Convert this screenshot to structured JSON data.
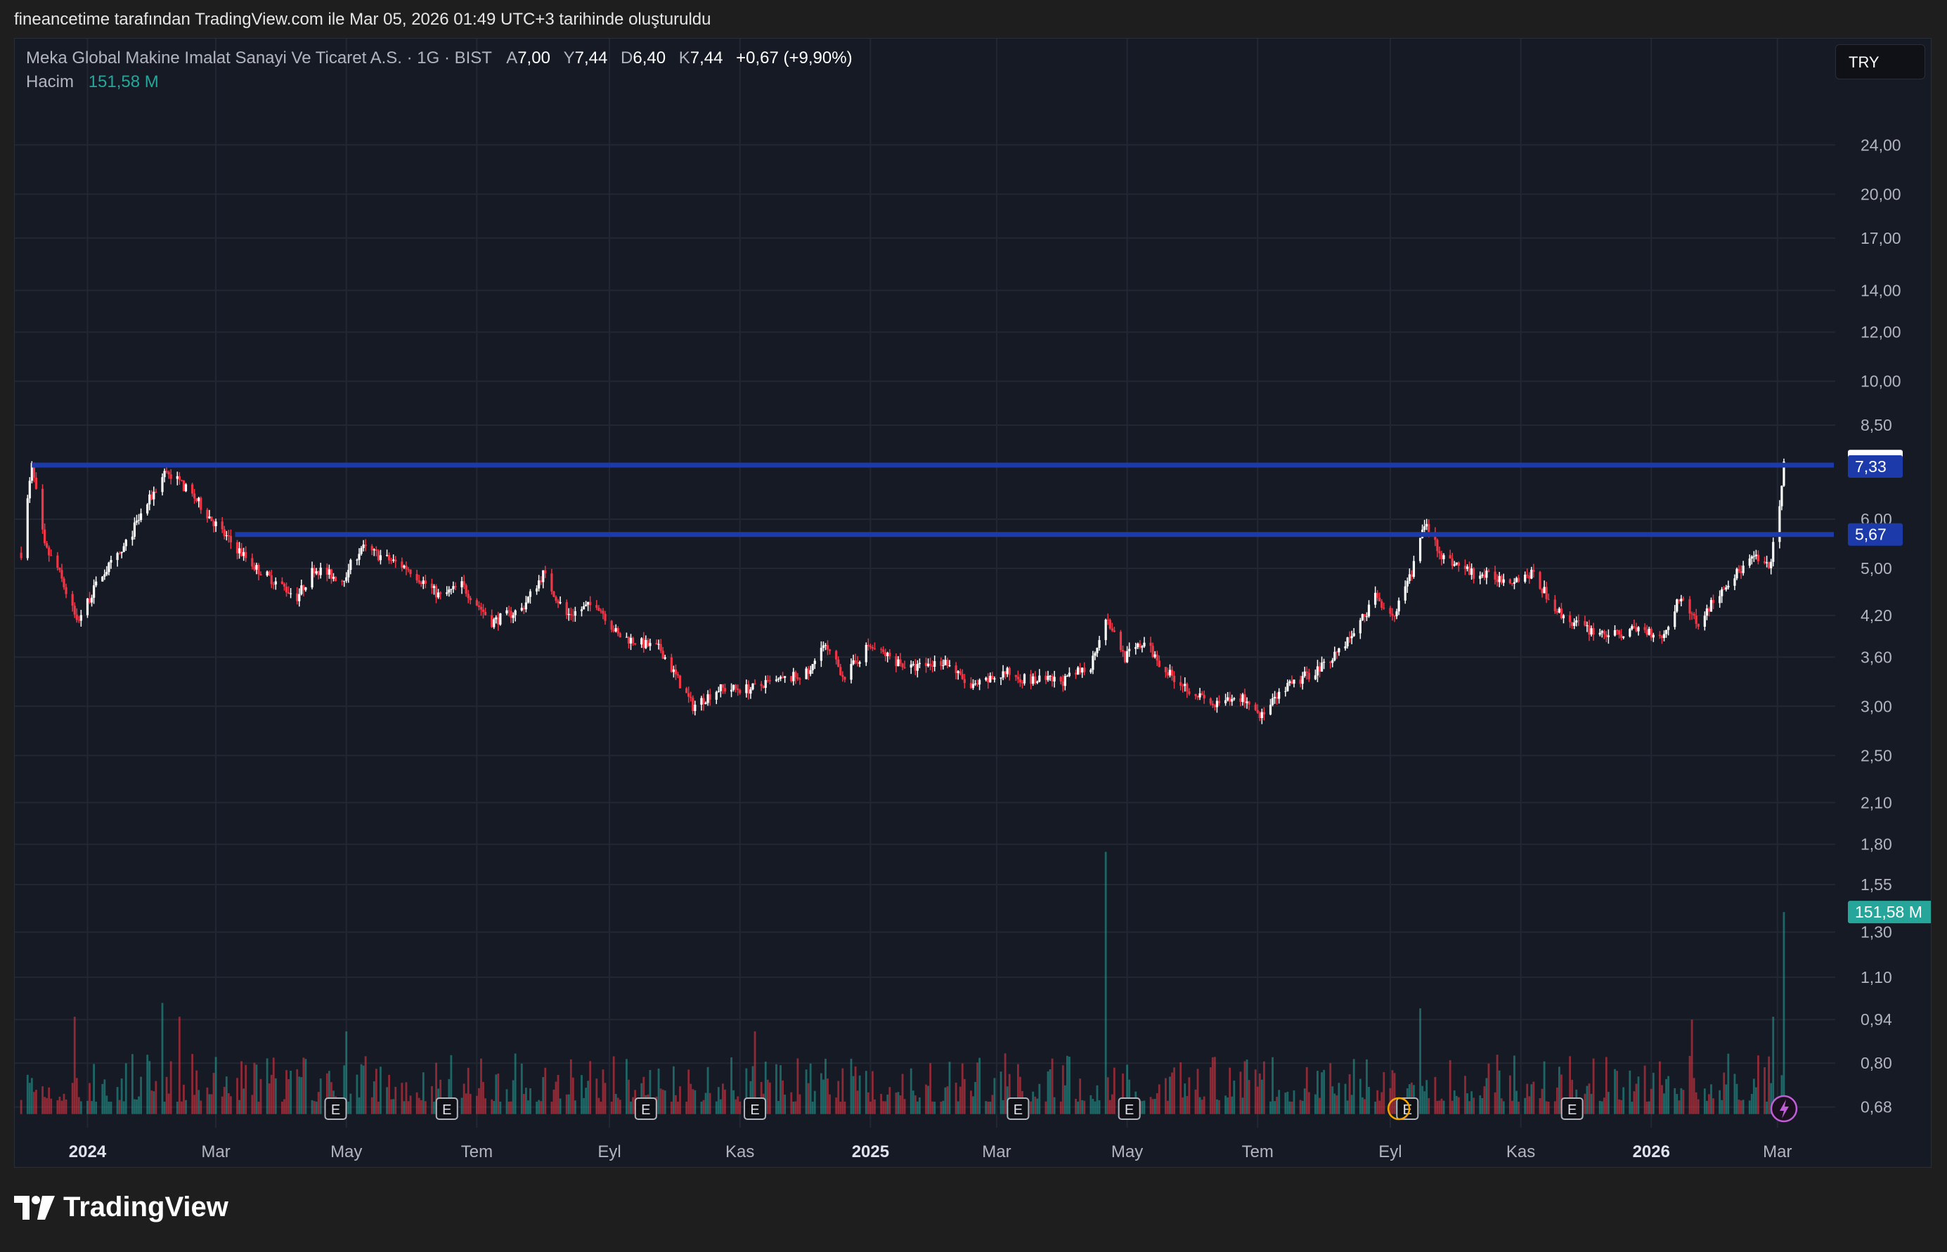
{
  "caption": "fineancetime tarafından TradingView.com ile Mar 05, 2026 01:49 UTC+3 tarihinde oluşturuldu",
  "legend": {
    "symbol": "Meka Global Makine Imalat Sanayi Ve Ticaret A.S. · 1G · BIST",
    "open_label": "A",
    "open": "7,00",
    "high_label": "Y",
    "high": "7,44",
    "low_label": "D",
    "low": "6,40",
    "close_label": "K",
    "close": "7,44",
    "change": "+0,67 (+9,90%)",
    "volume_label": "Hacim",
    "volume": "151,58 M"
  },
  "currency": "TRY",
  "brand": "TradingView",
  "colors": {
    "up": "#ffffff",
    "down": "#f23645",
    "vol_up": "#26a69a",
    "vol_down": "#f23645",
    "hline": "#1c3aa9",
    "bg": "#161a25"
  },
  "chart_data": {
    "type": "candlestick",
    "y_scale": "log",
    "ylim": [
      0.65,
      27
    ],
    "y_ticks": [
      "24,00",
      "20,00",
      "17,00",
      "14,00",
      "12,00",
      "10,00",
      "8,50",
      "6,00",
      "5,00",
      "4,20",
      "3,60",
      "3,00",
      "2,50",
      "2,10",
      "1,80",
      "1,55",
      "1,30",
      "1,10",
      "0,94",
      "0,80",
      "0,68"
    ],
    "x_ticks": [
      "2024",
      "Mar",
      "May",
      "Tem",
      "Eyl",
      "Kas",
      "2025",
      "Mar",
      "May",
      "Tem",
      "Eyl",
      "Kas",
      "2026",
      "Mar"
    ],
    "x_tick_bold": [
      true,
      false,
      false,
      false,
      false,
      false,
      true,
      false,
      false,
      false,
      false,
      false,
      true,
      false
    ],
    "price_path": [
      {
        "d": "2023-12-01",
        "p": 5.3
      },
      {
        "d": "2023-12-06",
        "p": 7.3
      },
      {
        "d": "2023-12-12",
        "p": 5.4
      },
      {
        "d": "2023-12-18",
        "p": 5.0
      },
      {
        "d": "2023-12-27",
        "p": 4.1
      },
      {
        "d": "2024-01-08",
        "p": 4.9
      },
      {
        "d": "2024-01-17",
        "p": 5.3
      },
      {
        "d": "2024-01-26",
        "p": 6.1
      },
      {
        "d": "2024-02-07",
        "p": 7.2
      },
      {
        "d": "2024-02-20",
        "p": 6.5
      },
      {
        "d": "2024-03-06",
        "p": 5.6
      },
      {
        "d": "2024-03-20",
        "p": 5.0
      },
      {
        "d": "2024-04-08",
        "p": 4.5
      },
      {
        "d": "2024-04-16",
        "p": 5.0
      },
      {
        "d": "2024-04-29",
        "p": 4.8
      },
      {
        "d": "2024-05-08",
        "p": 5.4
      },
      {
        "d": "2024-05-30",
        "p": 5.0
      },
      {
        "d": "2024-06-14",
        "p": 4.5
      },
      {
        "d": "2024-06-24",
        "p": 4.7
      },
      {
        "d": "2024-07-08",
        "p": 4.1
      },
      {
        "d": "2024-07-22",
        "p": 4.3
      },
      {
        "d": "2024-08-01",
        "p": 4.9
      },
      {
        "d": "2024-08-12",
        "p": 4.2
      },
      {
        "d": "2024-08-26",
        "p": 4.4
      },
      {
        "d": "2024-09-05",
        "p": 3.9
      },
      {
        "d": "2024-09-25",
        "p": 3.7
      },
      {
        "d": "2024-10-10",
        "p": 3.0
      },
      {
        "d": "2024-10-22",
        "p": 3.2
      },
      {
        "d": "2024-11-06",
        "p": 3.2
      },
      {
        "d": "2024-11-20",
        "p": 3.3
      },
      {
        "d": "2024-12-04",
        "p": 3.4
      },
      {
        "d": "2024-12-09",
        "p": 3.8
      },
      {
        "d": "2024-12-20",
        "p": 3.35
      },
      {
        "d": "2024-12-31",
        "p": 3.75
      },
      {
        "d": "2025-01-20",
        "p": 3.45
      },
      {
        "d": "2025-02-05",
        "p": 3.55
      },
      {
        "d": "2025-02-17",
        "p": 3.2
      },
      {
        "d": "2025-03-05",
        "p": 3.4
      },
      {
        "d": "2025-03-17",
        "p": 3.3
      },
      {
        "d": "2025-04-02",
        "p": 3.3
      },
      {
        "d": "2025-04-14",
        "p": 3.5
      },
      {
        "d": "2025-04-21",
        "p": 4.2
      },
      {
        "d": "2025-04-30",
        "p": 3.6
      },
      {
        "d": "2025-05-09",
        "p": 3.8
      },
      {
        "d": "2025-05-20",
        "p": 3.4
      },
      {
        "d": "2025-06-10",
        "p": 3.0
      },
      {
        "d": "2025-06-24",
        "p": 3.1
      },
      {
        "d": "2025-07-03",
        "p": 2.9
      },
      {
        "d": "2025-07-14",
        "p": 3.2
      },
      {
        "d": "2025-08-01",
        "p": 3.5
      },
      {
        "d": "2025-08-14",
        "p": 3.9
      },
      {
        "d": "2025-08-25",
        "p": 4.5
      },
      {
        "d": "2025-09-03",
        "p": 4.2
      },
      {
        "d": "2025-09-10",
        "p": 4.8
      },
      {
        "d": "2025-09-17",
        "p": 5.9
      },
      {
        "d": "2025-09-26",
        "p": 5.2
      },
      {
        "d": "2025-10-10",
        "p": 4.9
      },
      {
        "d": "2025-10-27",
        "p": 4.8
      },
      {
        "d": "2025-11-06",
        "p": 4.9
      },
      {
        "d": "2025-11-20",
        "p": 4.2
      },
      {
        "d": "2025-12-01",
        "p": 4.0
      },
      {
        "d": "2025-12-15",
        "p": 3.9
      },
      {
        "d": "2025-12-26",
        "p": 4.0
      },
      {
        "d": "2026-01-07",
        "p": 3.9
      },
      {
        "d": "2026-01-14",
        "p": 4.5
      },
      {
        "d": "2026-01-23",
        "p": 4.1
      },
      {
        "d": "2026-02-04",
        "p": 4.7
      },
      {
        "d": "2026-02-18",
        "p": 5.2
      },
      {
        "d": "2026-02-25",
        "p": 5.0
      },
      {
        "d": "2026-03-02",
        "p": 6.2
      },
      {
        "d": "2026-03-04",
        "p": 7.44
      }
    ],
    "volume_spikes": [
      {
        "d": "2023-12-26",
        "v": 0.95
      },
      {
        "d": "2024-02-05",
        "v": 1.0
      },
      {
        "d": "2024-02-13",
        "v": 0.95
      },
      {
        "d": "2024-05-01",
        "v": 0.9
      },
      {
        "d": "2024-11-08",
        "v": 0.9
      },
      {
        "d": "2025-04-21",
        "v": 1.75
      },
      {
        "d": "2025-09-15",
        "v": 0.98
      },
      {
        "d": "2026-01-20",
        "v": 0.94
      },
      {
        "d": "2026-02-27",
        "v": 0.95
      },
      {
        "d": "2026-03-04",
        "v": 1.4
      }
    ],
    "volume_axis_base": 0.68,
    "horizontal_levels": [
      {
        "value": 7.33,
        "label": "7,33",
        "from": "2023-12-06"
      },
      {
        "value": 5.67,
        "label": "5,67",
        "from": "2024-03-10"
      }
    ],
    "last_price": {
      "value": 7.44,
      "label": "7,44"
    },
    "last_volume_label": "151,58 M",
    "last_volume_level": 1.4,
    "earnings_markers": [
      "2024-04-26",
      "2024-06-17",
      "2024-09-18",
      "2024-11-08",
      "2025-03-11",
      "2025-05-02",
      "2025-09-09",
      "2025-11-25"
    ],
    "x_range": [
      "2023-11-28",
      "2026-03-28"
    ]
  }
}
